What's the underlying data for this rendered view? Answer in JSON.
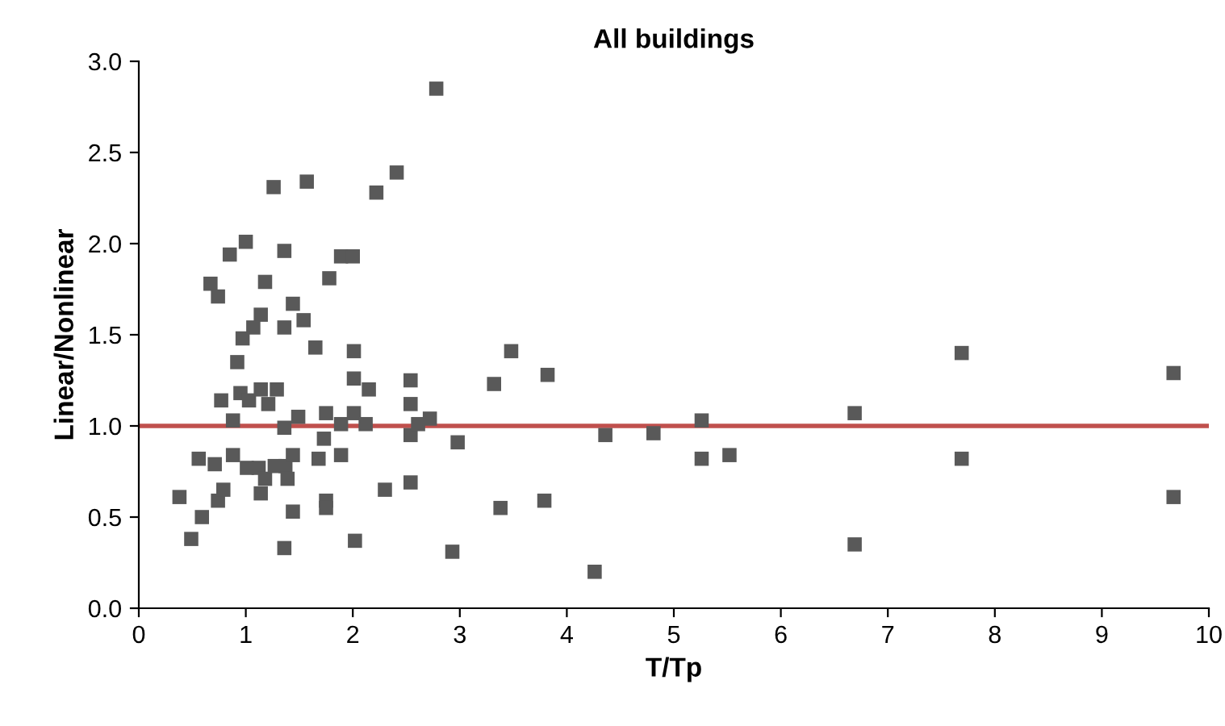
{
  "chart_data": {
    "type": "scatter",
    "title": "All buildings",
    "xlabel": "T/Tp",
    "ylabel": "Linear/Nonlinear",
    "x": [
      0.38,
      0.49,
      0.59,
      0.56,
      0.71,
      0.74,
      0.79,
      0.77,
      0.88,
      0.88,
      0.92,
      0.95,
      1.03,
      1.14,
      1.21,
      1.29,
      1.01,
      1.12,
      1.18,
      1.27,
      1.37,
      1.39,
      1.14,
      1.44,
      1.36,
      1.49,
      1.44,
      1.36,
      1.68,
      1.75,
      1.73,
      1.75,
      1.75,
      1.89,
      1.89,
      2.01,
      2.01,
      2.01,
      2.15,
      2.12,
      2.02,
      2.3,
      2.54,
      2.54,
      2.54,
      2.61,
      2.72,
      2.54,
      2.98,
      2.93,
      1.26,
      1.57,
      2.41,
      2.22,
      1.0,
      0.85,
      1.36,
      1.89,
      2.0,
      0.67,
      0.74,
      1.18,
      1.78,
      1.44,
      1.14,
      1.54,
      1.07,
      1.36,
      0.97,
      1.65,
      2.78,
      3.48,
      3.32,
      3.82,
      3.38,
      3.79,
      4.36,
      4.26,
      4.81,
      5.26,
      5.26,
      5.52,
      6.69,
      6.69,
      7.69,
      7.69,
      9.67,
      9.67
    ],
    "values": [
      0.61,
      0.38,
      0.5,
      0.82,
      0.79,
      0.59,
      0.65,
      1.14,
      1.03,
      0.84,
      1.35,
      1.18,
      1.14,
      1.2,
      1.12,
      1.2,
      0.77,
      0.77,
      0.71,
      0.78,
      0.78,
      0.71,
      0.63,
      0.84,
      0.99,
      1.05,
      0.53,
      0.33,
      0.82,
      1.07,
      0.93,
      0.59,
      0.55,
      1.01,
      0.84,
      1.07,
      1.26,
      1.41,
      1.2,
      1.01,
      0.37,
      0.65,
      1.25,
      1.12,
      0.95,
      1.01,
      1.04,
      0.69,
      0.91,
      0.31,
      2.31,
      2.34,
      2.39,
      2.28,
      2.01,
      1.94,
      1.96,
      1.93,
      1.93,
      1.78,
      1.71,
      1.79,
      1.81,
      1.67,
      1.61,
      1.58,
      1.54,
      1.54,
      1.48,
      1.43,
      2.85,
      1.41,
      1.23,
      1.28,
      0.55,
      0.59,
      0.95,
      0.2,
      0.96,
      1.03,
      0.82,
      0.84,
      1.07,
      0.35,
      1.4,
      0.82,
      1.29,
      0.61
    ],
    "color": "#595959",
    "marker": "square",
    "xlim": [
      0,
      10
    ],
    "xticks": [
      0,
      1,
      2,
      3,
      4,
      5,
      6,
      7,
      8,
      9,
      10
    ],
    "ylim": [
      0,
      3
    ],
    "yticks": [
      {
        "value": 0,
        "label": "0.0"
      },
      {
        "value": 0.5,
        "label": "0.5"
      },
      {
        "value": 1,
        "label": "1.0"
      },
      {
        "value": 1.5,
        "label": "1.5"
      },
      {
        "value": 2,
        "label": "2.0"
      },
      {
        "value": 2.5,
        "label": "2.5"
      },
      {
        "value": 3,
        "label": "3.0"
      }
    ],
    "ref_lines": [
      {
        "axis": "y",
        "value": 1,
        "color": "#c0504d"
      }
    ],
    "grid": false
  }
}
